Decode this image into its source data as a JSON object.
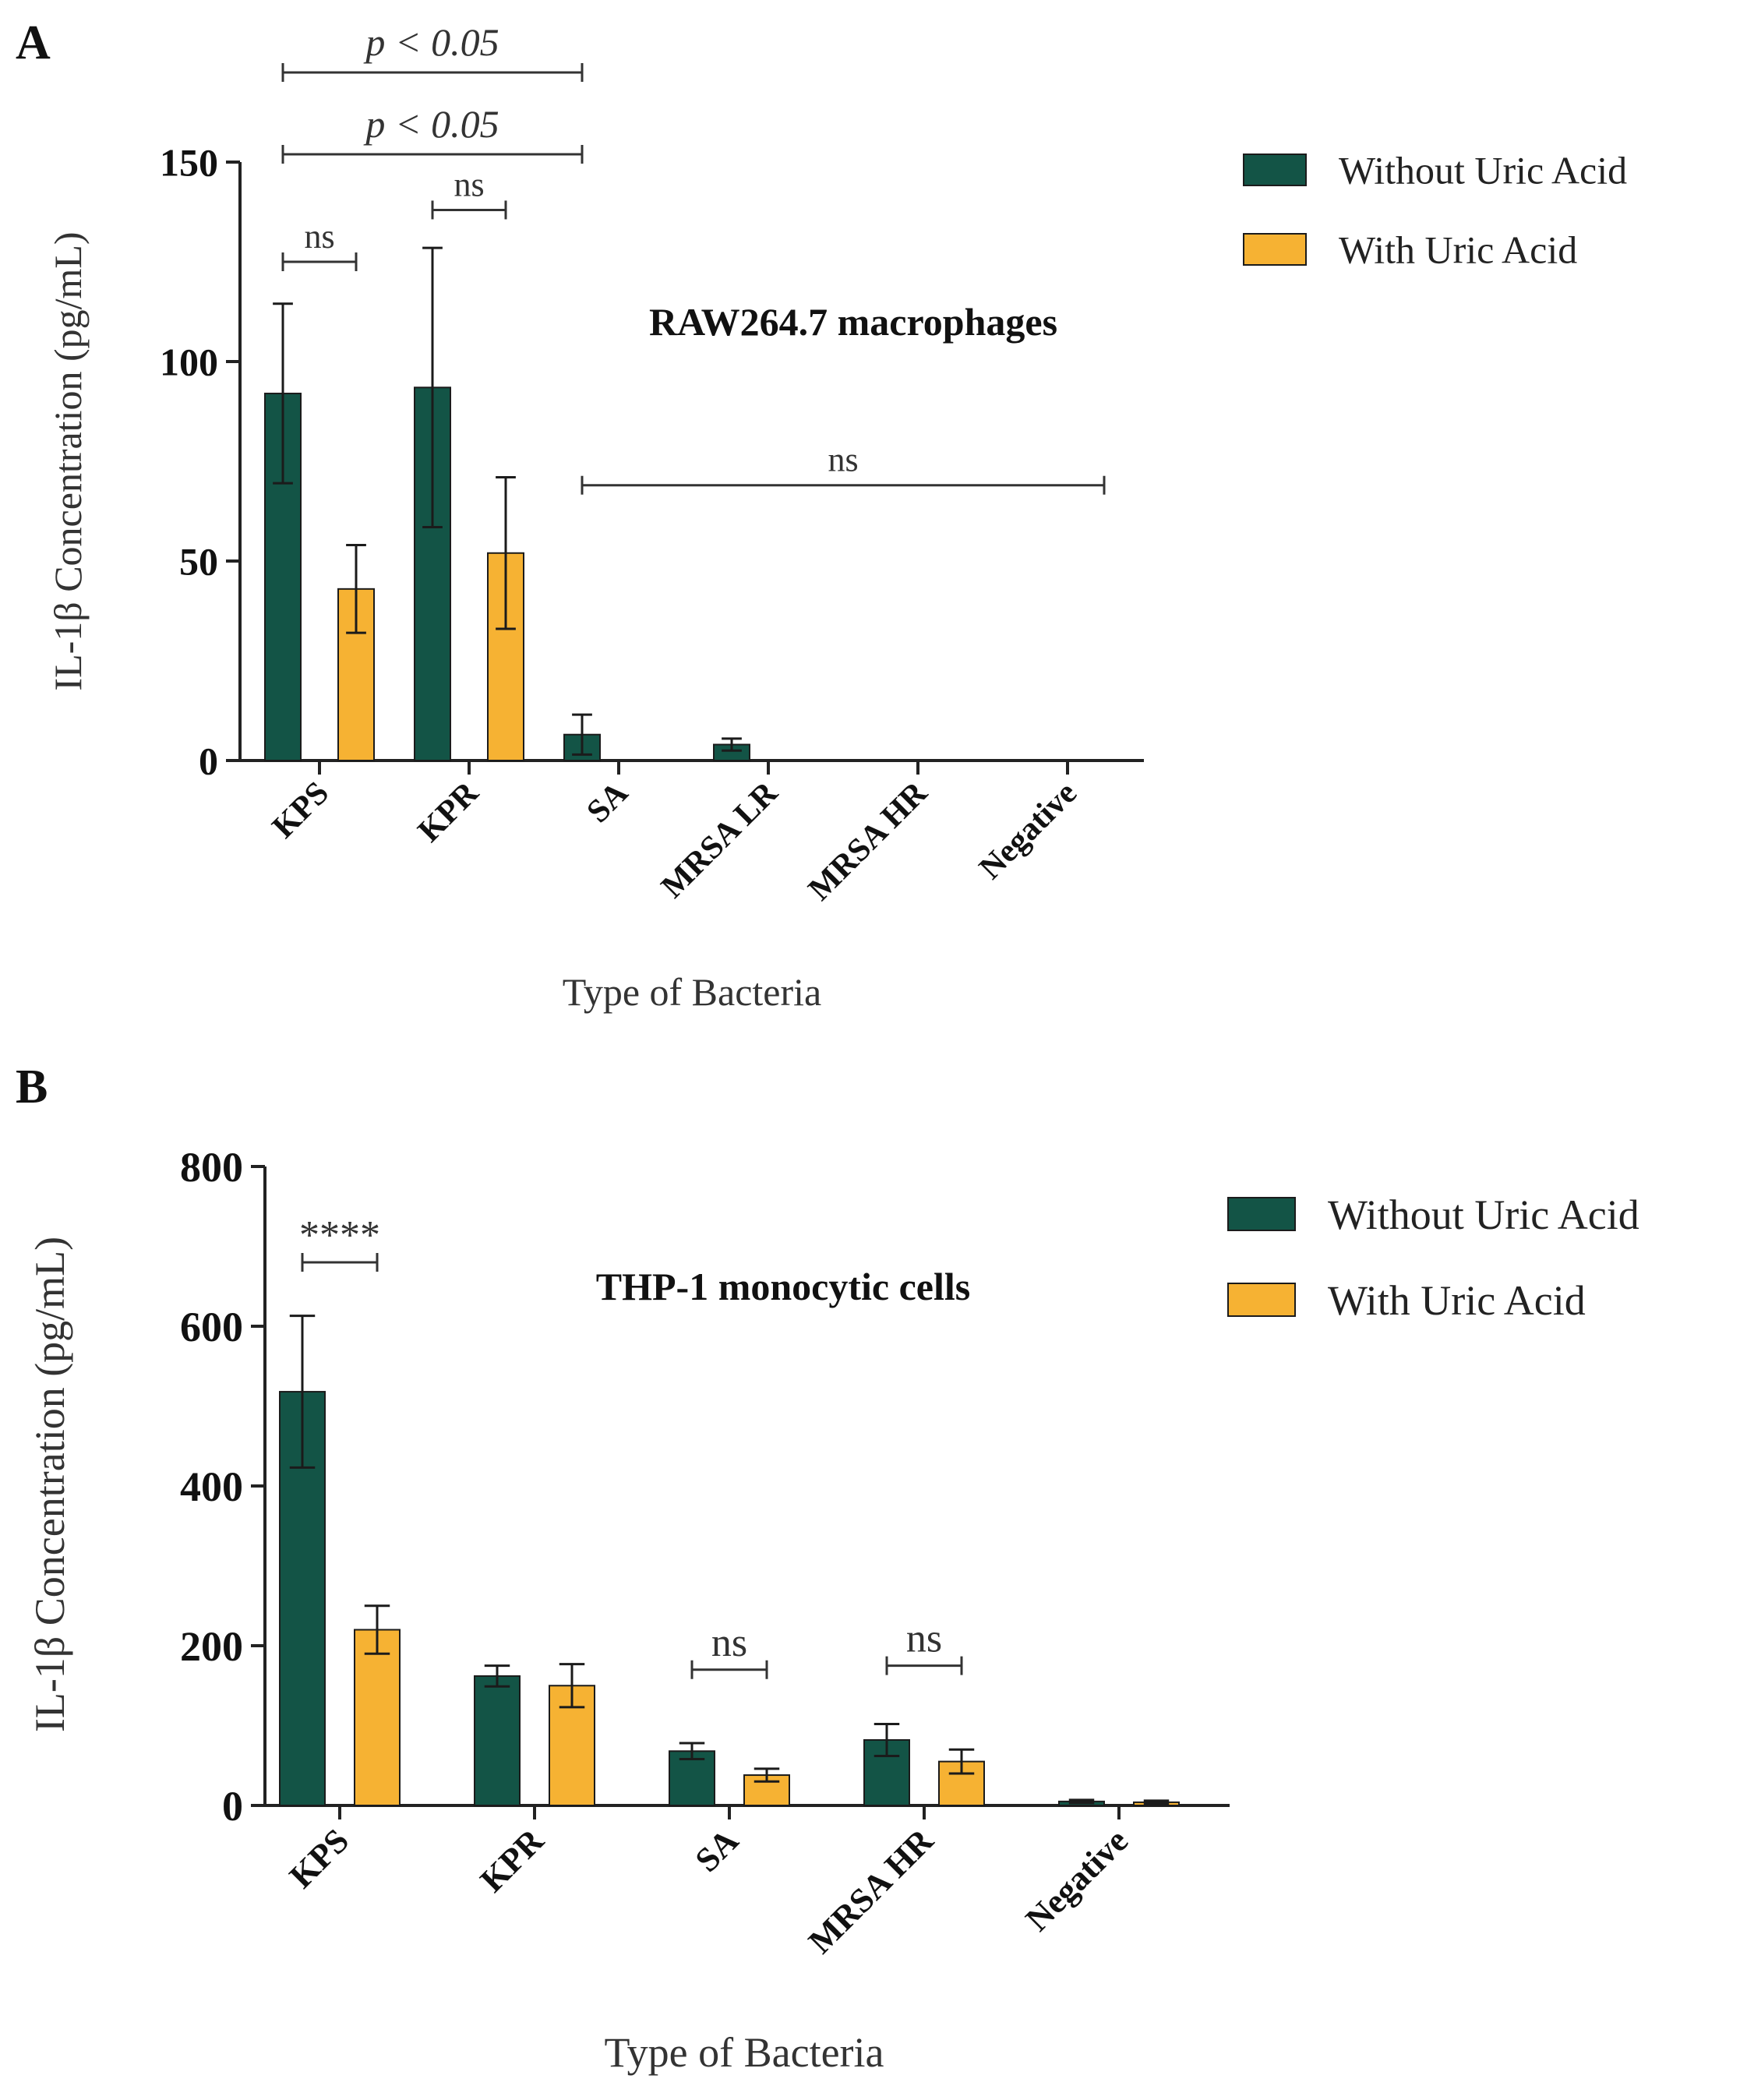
{
  "colors": {
    "without": "#135446",
    "with": "#F6B233",
    "axis": "#222222",
    "text": "#111111",
    "bracket": "#333333"
  },
  "chart_data": [
    {
      "panel_label": "A",
      "type": "bar",
      "title": "RAW264.7 macrophages",
      "xlabel": "Type of Bacteria",
      "ylabel": "IL-1β Concentration (pg/mL)",
      "ylim": [
        0,
        150
      ],
      "yticks": [
        "0",
        "50",
        "100",
        "150"
      ],
      "categories": [
        "KPS",
        "KPR",
        "SA",
        "MRSA LR",
        "MRSA HR",
        "Negative"
      ],
      "series": [
        {
          "name": "Without Uric Acid",
          "color": "#135446",
          "values": [
            92,
            93.5,
            6.5,
            4,
            0,
            0
          ],
          "errors": [
            22.5,
            35,
            5,
            1.5,
            0,
            0
          ]
        },
        {
          "name": "With Uric Acid",
          "color": "#F6B233",
          "values": [
            43,
            52,
            0,
            0,
            0,
            0
          ],
          "errors": [
            11,
            19,
            0,
            0,
            0,
            0
          ]
        }
      ],
      "annotations": [
        {
          "text": "ns",
          "from": "KPS:0",
          "to": "KPS:1",
          "y": 125
        },
        {
          "text": "ns",
          "from": "KPR:0",
          "to": "KPR:1",
          "y": 138
        },
        {
          "text": "ns",
          "from": "SA:0",
          "to": "Negative:1",
          "y": 69
        },
        {
          "text": "p < 0.05",
          "from": "KPS:0",
          "to": "SA:0",
          "y": 152
        },
        {
          "text": "p < 0.05",
          "from": "KPS:0",
          "to": "SA:0",
          "y": 172
        }
      ]
    },
    {
      "panel_label": "B",
      "type": "bar",
      "title": "THP-1 monocytic cells",
      "xlabel": "Type of Bacteria",
      "ylabel": "IL-1β Concentration (pg/mL)",
      "ylim": [
        0,
        800
      ],
      "yticks": [
        "0",
        "200",
        "400",
        "600",
        "800"
      ],
      "categories": [
        "KPS",
        "KPR",
        "SA",
        "MRSA HR",
        "Negative"
      ],
      "series": [
        {
          "name": "Without Uric Acid",
          "color": "#135446",
          "values": [
            518,
            162,
            68,
            82,
            5
          ],
          "errors": [
            95,
            13,
            10,
            20,
            2
          ]
        },
        {
          "name": "With Uric Acid",
          "color": "#F6B233",
          "values": [
            220,
            150,
            38,
            55,
            4
          ],
          "errors": [
            30,
            27,
            8,
            15,
            2
          ]
        }
      ],
      "annotations": [
        {
          "text": "****",
          "from": "KPS:0",
          "to": "KPS:1",
          "y": 680
        },
        {
          "text": "ns",
          "from": "SA:0",
          "to": "SA:1",
          "y": 170
        },
        {
          "text": "ns",
          "from": "MRSA HR:0",
          "to": "MRSA HR:1",
          "y": 175
        }
      ]
    }
  ]
}
